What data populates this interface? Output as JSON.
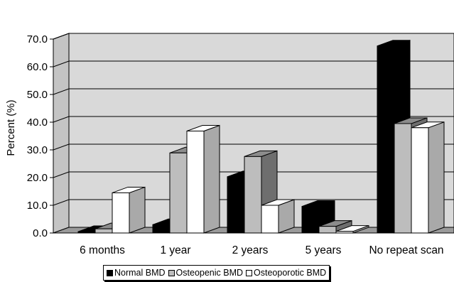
{
  "chart_data": {
    "type": "bar",
    "title": "",
    "xlabel": "",
    "ylabel": "Percent (%)",
    "ylim": [
      0,
      70
    ],
    "yticks": [
      "0.0",
      "10.0",
      "20.0",
      "30.0",
      "40.0",
      "50.0",
      "60.0",
      "70.0"
    ],
    "categories": [
      "6 months",
      "1 year",
      "2 years",
      "5 years",
      "No repeat scan"
    ],
    "series": [
      {
        "name": "Normal BMD",
        "values": [
          0.5,
          3.0,
          20.3,
          9.6,
          67.5
        ],
        "color": "#000000",
        "side_color": "#000000",
        "top_color": "#000000"
      },
      {
        "name": "Osteopenic BMD",
        "values": [
          1.5,
          28.9,
          27.6,
          2.4,
          39.5
        ],
        "color": "#bdbdbd",
        "side_color": "#6e6e6e",
        "top_color": "#8c8c8c"
      },
      {
        "name": "Osteoporotic BMD",
        "values": [
          14.5,
          36.8,
          10.0,
          0.6,
          38.0
        ],
        "color": "#ffffff",
        "side_color": "#a9a9a9",
        "top_color": "#ffffff"
      }
    ],
    "grid": true,
    "legend": "bottom",
    "plot_background": "#d9d9d9"
  }
}
